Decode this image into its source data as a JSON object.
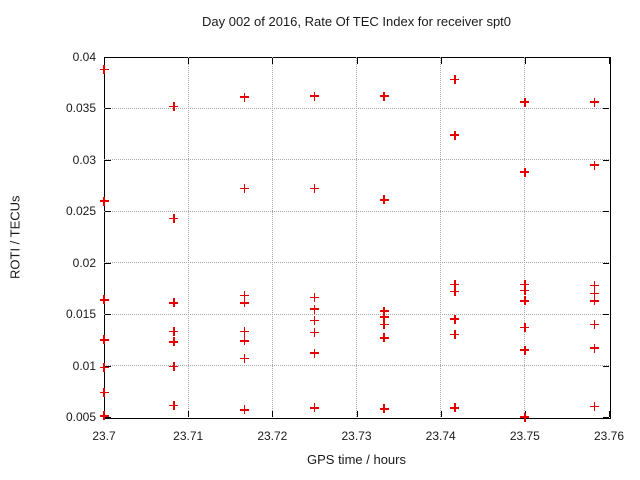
{
  "chart_data": {
    "type": "scatter",
    "title": "Day 002 of 2016, Rate Of TEC Index for receiver spt0",
    "xlabel": "GPS time / hours",
    "ylabel": "ROTI / TECUs",
    "xlim": [
      23.7,
      23.76
    ],
    "ylim": [
      0.005,
      0.04
    ],
    "xticks": [
      23.7,
      23.71,
      23.72,
      23.73,
      23.74,
      23.75,
      23.76
    ],
    "xtick_labels": [
      "23.7",
      "23.71",
      "23.72",
      "23.73",
      "23.74",
      "23.75",
      "23.76"
    ],
    "yticks": [
      0.005,
      0.01,
      0.015,
      0.02,
      0.025,
      0.03,
      0.035,
      0.04
    ],
    "ytick_labels": [
      "0.005",
      "0.01",
      "0.015",
      "0.02",
      "0.025",
      "0.03",
      "0.035",
      "0.04"
    ],
    "grid": true,
    "legend_position": "none",
    "marker_shape": "plus",
    "marker_color": "#e60000",
    "series": [
      {
        "name": "ROTI",
        "points": [
          [
            23.7,
            0.0388
          ],
          [
            23.7,
            0.026
          ],
          [
            23.7,
            0.0164
          ],
          [
            23.7,
            0.0125
          ],
          [
            23.7,
            0.0098
          ],
          [
            23.7,
            0.0074
          ],
          [
            23.7,
            0.0051
          ],
          [
            23.7083,
            0.0352
          ],
          [
            23.7083,
            0.0243
          ],
          [
            23.7083,
            0.0161
          ],
          [
            23.7083,
            0.0133
          ],
          [
            23.7083,
            0.0123
          ],
          [
            23.7083,
            0.0099
          ],
          [
            23.7083,
            0.0061
          ],
          [
            23.7167,
            0.0361
          ],
          [
            23.7167,
            0.0272
          ],
          [
            23.7167,
            0.0168
          ],
          [
            23.7167,
            0.0161
          ],
          [
            23.7167,
            0.0133
          ],
          [
            23.7167,
            0.0124
          ],
          [
            23.7167,
            0.0107
          ],
          [
            23.7167,
            0.0057
          ],
          [
            23.725,
            0.0362
          ],
          [
            23.725,
            0.0272
          ],
          [
            23.725,
            0.0166
          ],
          [
            23.725,
            0.0155
          ],
          [
            23.725,
            0.0144
          ],
          [
            23.725,
            0.0132
          ],
          [
            23.725,
            0.0112
          ],
          [
            23.725,
            0.0059
          ],
          [
            23.7333,
            0.0362
          ],
          [
            23.7333,
            0.0261
          ],
          [
            23.7333,
            0.0153
          ],
          [
            23.7333,
            0.0147
          ],
          [
            23.7333,
            0.014
          ],
          [
            23.7333,
            0.0127
          ],
          [
            23.7333,
            0.0058
          ],
          [
            23.7417,
            0.0378
          ],
          [
            23.7417,
            0.0324
          ],
          [
            23.7417,
            0.0179
          ],
          [
            23.7417,
            0.0172
          ],
          [
            23.7417,
            0.0145
          ],
          [
            23.7417,
            0.013
          ],
          [
            23.7417,
            0.0059
          ],
          [
            23.75,
            0.0356
          ],
          [
            23.75,
            0.0288
          ],
          [
            23.75,
            0.0179
          ],
          [
            23.75,
            0.0173
          ],
          [
            23.75,
            0.0163
          ],
          [
            23.75,
            0.0137
          ],
          [
            23.75,
            0.0115
          ],
          [
            23.75,
            0.005
          ],
          [
            23.7583,
            0.0356
          ],
          [
            23.7583,
            0.0295
          ],
          [
            23.7583,
            0.0178
          ],
          [
            23.7583,
            0.017
          ],
          [
            23.7583,
            0.0163
          ],
          [
            23.7583,
            0.014
          ],
          [
            23.7583,
            0.0117
          ],
          [
            23.7583,
            0.006
          ]
        ]
      }
    ]
  }
}
